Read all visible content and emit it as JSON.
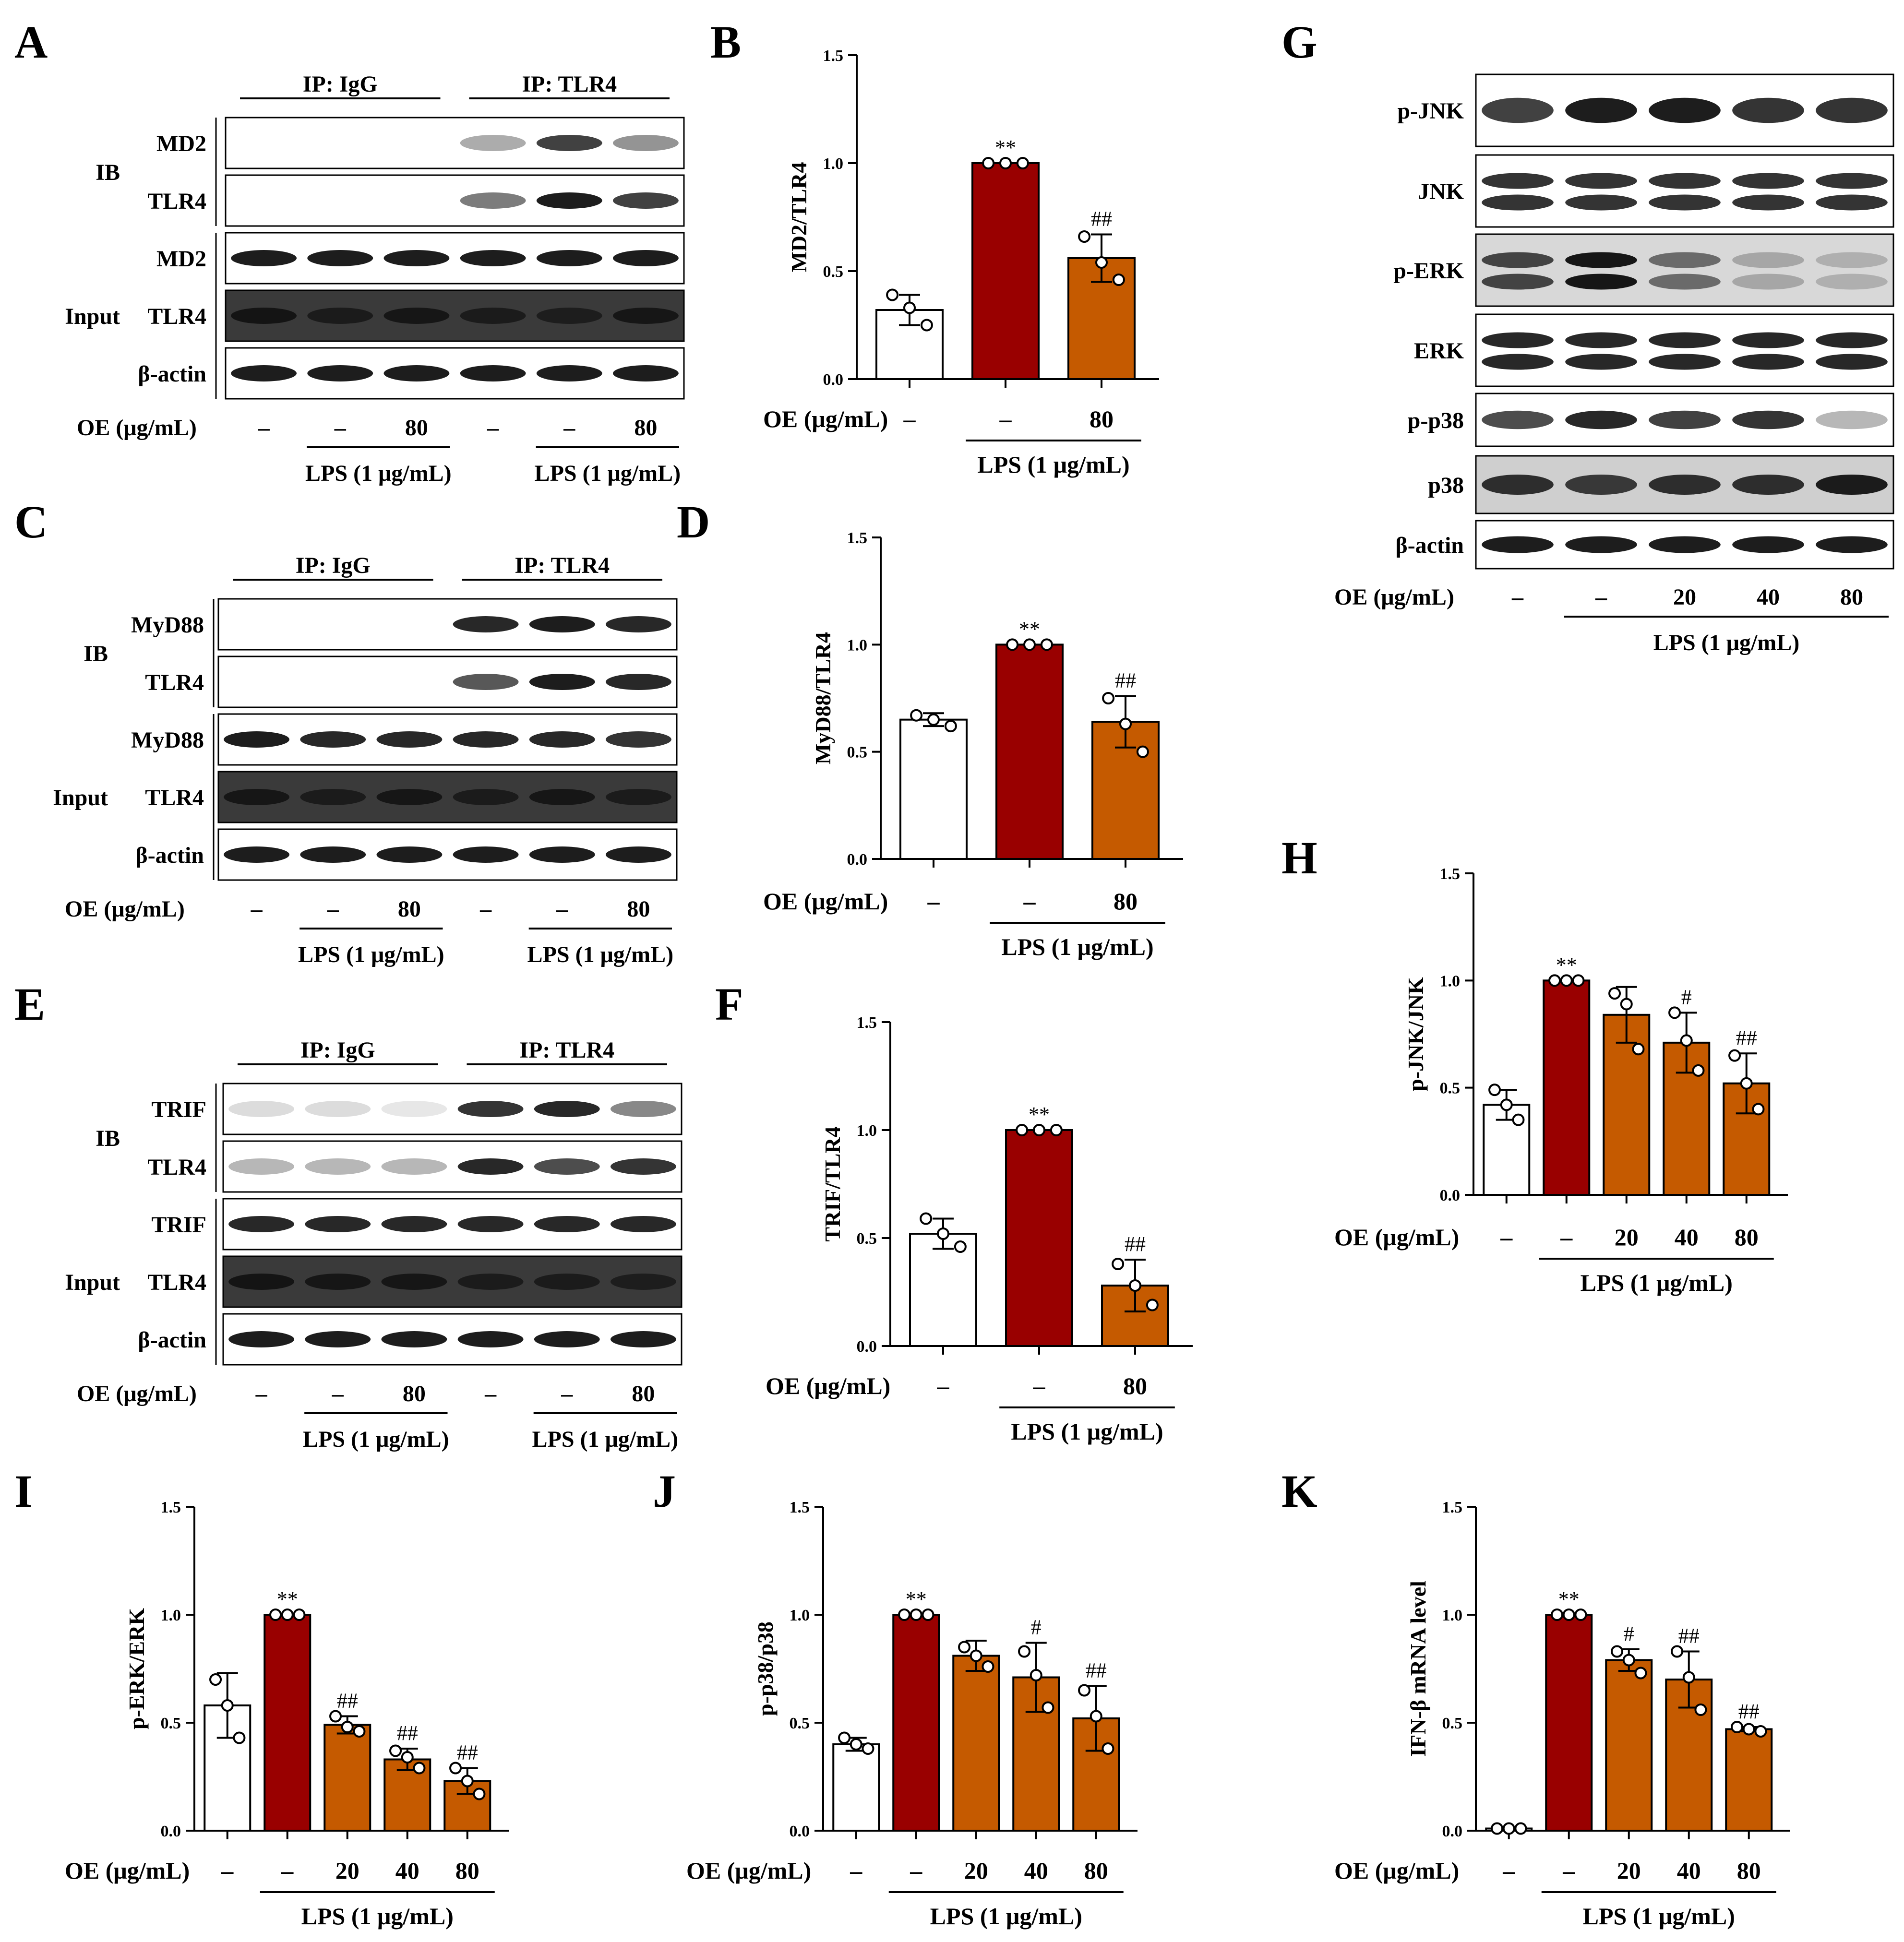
{
  "blots": [
    {
      "letter": "A",
      "ip": [
        "IP: IgG",
        "IP: TLR4"
      ],
      "groups": [
        {
          "name": "IB",
          "rows": [
            "MD2",
            "TLR4"
          ]
        },
        {
          "name": "Input",
          "rows": [
            "MD2",
            "TLR4",
            "β-actin"
          ]
        }
      ],
      "oe_label": "OE (μg/mL)",
      "oe_values": [
        "–",
        "–",
        "80",
        "–",
        "–",
        "80"
      ],
      "lps_label": "LPS (1 μg/mL)"
    },
    {
      "letter": "C",
      "ip": [
        "IP: IgG",
        "IP: TLR4"
      ],
      "groups": [
        {
          "name": "IB",
          "rows": [
            "MyD88",
            "TLR4"
          ]
        },
        {
          "name": "Input",
          "rows": [
            "MyD88",
            "TLR4",
            "β-actin"
          ]
        }
      ],
      "oe_label": "OE (μg/mL)",
      "oe_values": [
        "–",
        "–",
        "80",
        "–",
        "–",
        "80"
      ],
      "lps_label": "LPS (1 μg/mL)"
    },
    {
      "letter": "E",
      "ip": [
        "IP: IgG",
        "IP: TLR4"
      ],
      "groups": [
        {
          "name": "IB",
          "rows": [
            "TRIF",
            "TLR4"
          ]
        },
        {
          "name": "Input",
          "rows": [
            "TRIF",
            "TLR4",
            "β-actin"
          ]
        }
      ],
      "oe_label": "OE (μg/mL)",
      "oe_values": [
        "–",
        "–",
        "80",
        "–",
        "–",
        "80"
      ],
      "lps_label": "LPS (1 μg/mL)"
    },
    {
      "letter": "G",
      "rows": [
        "p-JNK",
        "JNK",
        "p-ERK",
        "ERK",
        "p-p38",
        "p38",
        "β-actin"
      ],
      "oe_label": "OE (μg/mL)",
      "oe_values": [
        "–",
        "–",
        "20",
        "40",
        "80"
      ],
      "lps_label": "LPS (1 μg/mL)"
    }
  ],
  "chart_data": [
    {
      "letter": "B",
      "type": "bar",
      "ylabel": "MD2/TLR4",
      "ylim": [
        0,
        1.5
      ],
      "yticks": [
        "0.0",
        "0.5",
        "1.0",
        "1.5"
      ],
      "oe_label": "OE (μg/mL)",
      "categories": [
        "–",
        "–",
        "80"
      ],
      "lps_label": "LPS (1 μg/mL)",
      "values": [
        0.32,
        1.0,
        0.56
      ],
      "errors": [
        0.07,
        0.0,
        0.11
      ],
      "points": [
        [
          0.39,
          0.33,
          0.25
        ],
        [
          1.0,
          1.0,
          1.0
        ],
        [
          0.66,
          0.54,
          0.46
        ]
      ],
      "sig": [
        "",
        "**",
        "##"
      ],
      "colors": [
        "#ffffff",
        "#990000",
        "#c55a00"
      ]
    },
    {
      "letter": "D",
      "type": "bar",
      "ylabel": "MyD88/TLR4",
      "ylim": [
        0,
        1.5
      ],
      "yticks": [
        "0.0",
        "0.5",
        "1.0",
        "1.5"
      ],
      "oe_label": "OE (μg/mL)",
      "categories": [
        "–",
        "–",
        "80"
      ],
      "lps_label": "LPS (1 μg/mL)",
      "values": [
        0.65,
        1.0,
        0.64
      ],
      "errors": [
        0.03,
        0.0,
        0.12
      ],
      "points": [
        [
          0.67,
          0.65,
          0.62
        ],
        [
          1.0,
          1.0,
          1.0
        ],
        [
          0.75,
          0.63,
          0.5
        ]
      ],
      "sig": [
        "",
        "**",
        "##"
      ],
      "colors": [
        "#ffffff",
        "#990000",
        "#c55a00"
      ]
    },
    {
      "letter": "F",
      "type": "bar",
      "ylabel": "TRIF/TLR4",
      "ylim": [
        0,
        1.5
      ],
      "yticks": [
        "0.0",
        "0.5",
        "1.0",
        "1.5"
      ],
      "oe_label": "OE (μg/mL)",
      "categories": [
        "–",
        "–",
        "80"
      ],
      "lps_label": "LPS (1 μg/mL)",
      "values": [
        0.52,
        1.0,
        0.28
      ],
      "errors": [
        0.07,
        0.0,
        0.12
      ],
      "points": [
        [
          0.59,
          0.52,
          0.46
        ],
        [
          1.0,
          1.0,
          1.0
        ],
        [
          0.38,
          0.28,
          0.19
        ]
      ],
      "sig": [
        "",
        "**",
        "##"
      ],
      "colors": [
        "#ffffff",
        "#990000",
        "#c55a00"
      ]
    },
    {
      "letter": "H",
      "type": "bar",
      "ylabel": "p-JNK/JNK",
      "ylim": [
        0,
        1.5
      ],
      "yticks": [
        "0.0",
        "0.5",
        "1.0",
        "1.5"
      ],
      "oe_label": "OE (μg/mL)",
      "categories": [
        "–",
        "–",
        "20",
        "40",
        "80"
      ],
      "lps_label": "LPS (1 μg/mL)",
      "values": [
        0.42,
        1.0,
        0.84,
        0.71,
        0.52
      ],
      "errors": [
        0.07,
        0.0,
        0.13,
        0.14,
        0.14
      ],
      "points": [
        [
          0.49,
          0.42,
          0.35
        ],
        [
          1.0,
          1.0,
          1.0
        ],
        [
          0.94,
          0.89,
          0.68
        ],
        [
          0.85,
          0.72,
          0.58
        ],
        [
          0.65,
          0.52,
          0.4
        ]
      ],
      "sig": [
        "",
        "**",
        "",
        "#",
        "##"
      ],
      "colors": [
        "#ffffff",
        "#990000",
        "#c55a00",
        "#c55a00",
        "#c55a00"
      ]
    },
    {
      "letter": "I",
      "type": "bar",
      "ylabel": "p-ERK/ERK",
      "ylim": [
        0,
        1.5
      ],
      "yticks": [
        "0.0",
        "0.5",
        "1.0",
        "1.5"
      ],
      "oe_label": "OE (μg/mL)",
      "categories": [
        "–",
        "–",
        "20",
        "40",
        "80"
      ],
      "lps_label": "LPS (1 μg/mL)",
      "values": [
        0.58,
        1.0,
        0.49,
        0.33,
        0.23
      ],
      "errors": [
        0.15,
        0.0,
        0.04,
        0.05,
        0.06
      ],
      "points": [
        [
          0.7,
          0.58,
          0.43
        ],
        [
          1.0,
          1.0,
          1.0
        ],
        [
          0.53,
          0.48,
          0.46
        ],
        [
          0.37,
          0.34,
          0.29
        ],
        [
          0.29,
          0.23,
          0.17
        ]
      ],
      "sig": [
        "",
        "**",
        "##",
        "##",
        "##"
      ],
      "colors": [
        "#ffffff",
        "#990000",
        "#c55a00",
        "#c55a00",
        "#c55a00"
      ]
    },
    {
      "letter": "J",
      "type": "bar",
      "ylabel": "p-p38/p38",
      "ylim": [
        0,
        1.5
      ],
      "yticks": [
        "0.0",
        "0.5",
        "1.0",
        "1.5"
      ],
      "oe_label": "OE (μg/mL)",
      "categories": [
        "–",
        "–",
        "20",
        "40",
        "80"
      ],
      "lps_label": "LPS (1 μg/mL)",
      "values": [
        0.4,
        1.0,
        0.81,
        0.71,
        0.52
      ],
      "errors": [
        0.03,
        0.0,
        0.07,
        0.16,
        0.15
      ],
      "points": [
        [
          0.43,
          0.4,
          0.38
        ],
        [
          1.0,
          1.0,
          1.0
        ],
        [
          0.85,
          0.81,
          0.76
        ],
        [
          0.83,
          0.72,
          0.57
        ],
        [
          0.65,
          0.53,
          0.38
        ]
      ],
      "sig": [
        "",
        "**",
        "",
        "#",
        "##"
      ],
      "colors": [
        "#ffffff",
        "#990000",
        "#c55a00",
        "#c55a00",
        "#c55a00"
      ]
    },
    {
      "letter": "K",
      "type": "bar",
      "ylabel": "IFN-β mRNA level",
      "ylim": [
        0,
        1.5
      ],
      "yticks": [
        "0.0",
        "0.5",
        "1.0",
        "1.5"
      ],
      "oe_label": "OE (μg/mL)",
      "categories": [
        "–",
        "–",
        "20",
        "40",
        "80"
      ],
      "lps_label": "LPS (1 μg/mL)",
      "values": [
        0.01,
        1.0,
        0.79,
        0.7,
        0.47
      ],
      "errors": [
        0.0,
        0.0,
        0.05,
        0.13,
        0.01
      ],
      "points": [
        [
          0.01,
          0.01,
          0.01
        ],
        [
          1.0,
          1.0,
          1.0
        ],
        [
          0.83,
          0.79,
          0.73
        ],
        [
          0.83,
          0.71,
          0.56
        ],
        [
          0.48,
          0.47,
          0.46
        ]
      ],
      "sig": [
        "",
        "**",
        "#",
        "##",
        "##"
      ],
      "colors": [
        "#ffffff",
        "#990000",
        "#c55a00",
        "#c55a00",
        "#c55a00"
      ]
    }
  ]
}
